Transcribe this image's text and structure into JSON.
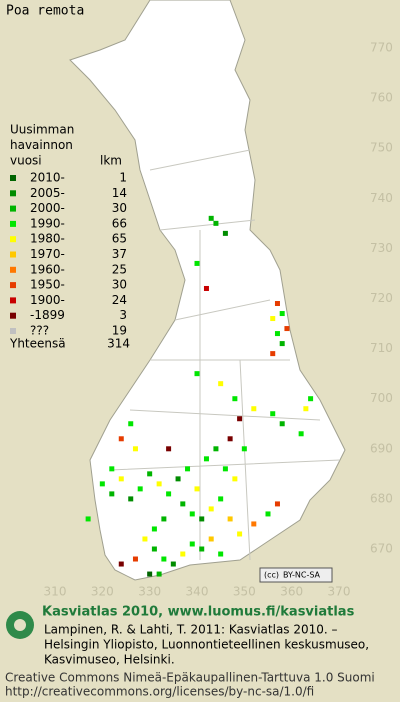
{
  "title": "Poa remota",
  "legend": {
    "heading": [
      "Uusimman",
      "havainnon",
      "vuosi"
    ],
    "count_heading": "lkm",
    "rows": [
      {
        "label": "2010-",
        "count": 1,
        "color": "#006400"
      },
      {
        "label": "2005-",
        "count": 14,
        "color": "#008c00"
      },
      {
        "label": "2000-",
        "count": 30,
        "color": "#00b400"
      },
      {
        "label": "1990-",
        "count": 66,
        "color": "#00e600"
      },
      {
        "label": "1980-",
        "count": 65,
        "color": "#ffff00"
      },
      {
        "label": "1970-",
        "count": 37,
        "color": "#ffc800"
      },
      {
        "label": "1960-",
        "count": 25,
        "color": "#ff7800"
      },
      {
        "label": "1950-",
        "count": 30,
        "color": "#e63c00"
      },
      {
        "label": "1900-",
        "count": 24,
        "color": "#c80000"
      },
      {
        "label": "-1899",
        "count": 3,
        "color": "#780000"
      },
      {
        "label": "???",
        "count": 19,
        "color": "#c0c0c0"
      }
    ],
    "total_label": "Yhteensä",
    "total": 314
  },
  "map": {
    "xlim": [
      310,
      370
    ],
    "ylim": [
      670,
      770
    ],
    "xticks": [
      310,
      320,
      330,
      340,
      350,
      360,
      370
    ],
    "yticks": [
      670,
      680,
      690,
      700,
      710,
      720,
      730,
      740,
      750,
      760,
      770
    ],
    "points": [
      [
        343,
        736,
        3
      ],
      [
        344,
        735,
        3
      ],
      [
        346,
        733,
        2
      ],
      [
        340,
        727,
        4
      ],
      [
        342,
        722,
        9
      ],
      [
        357,
        719,
        8
      ],
      [
        358,
        717,
        4
      ],
      [
        356,
        716,
        5
      ],
      [
        359,
        714,
        8
      ],
      [
        357,
        713,
        4
      ],
      [
        358,
        711,
        3
      ],
      [
        356,
        709,
        8
      ],
      [
        340,
        705,
        4
      ],
      [
        345,
        703,
        5
      ],
      [
        348,
        700,
        4
      ],
      [
        352,
        698,
        5
      ],
      [
        356,
        697,
        4
      ],
      [
        349,
        696,
        10
      ],
      [
        358,
        695,
        3
      ],
      [
        362,
        693,
        4
      ],
      [
        363,
        698,
        5
      ],
      [
        364,
        700,
        4
      ],
      [
        326,
        695,
        4
      ],
      [
        324,
        692,
        8
      ],
      [
        327,
        690,
        5
      ],
      [
        322,
        686,
        4
      ],
      [
        320,
        683,
        4
      ],
      [
        322,
        681,
        3
      ],
      [
        324,
        684,
        5
      ],
      [
        326,
        680,
        2
      ],
      [
        328,
        682,
        4
      ],
      [
        330,
        685,
        3
      ],
      [
        332,
        683,
        5
      ],
      [
        334,
        681,
        4
      ],
      [
        336,
        684,
        2
      ],
      [
        338,
        686,
        4
      ],
      [
        340,
        682,
        5
      ],
      [
        342,
        688,
        4
      ],
      [
        344,
        690,
        3
      ],
      [
        346,
        686,
        4
      ],
      [
        348,
        684,
        5
      ],
      [
        337,
        679,
        3
      ],
      [
        339,
        677,
        4
      ],
      [
        341,
        676,
        2
      ],
      [
        343,
        678,
        5
      ],
      [
        345,
        680,
        4
      ],
      [
        347,
        676,
        6
      ],
      [
        333,
        676,
        3
      ],
      [
        331,
        674,
        4
      ],
      [
        329,
        672,
        5
      ],
      [
        331,
        670,
        3
      ],
      [
        333,
        668,
        4
      ],
      [
        335,
        667,
        2
      ],
      [
        337,
        669,
        5
      ],
      [
        339,
        671,
        4
      ],
      [
        341,
        670,
        3
      ],
      [
        343,
        672,
        6
      ],
      [
        345,
        669,
        4
      ],
      [
        349,
        673,
        5
      ],
      [
        352,
        675,
        7
      ],
      [
        355,
        677,
        4
      ],
      [
        357,
        679,
        8
      ],
      [
        327,
        668,
        8
      ],
      [
        324,
        667,
        10
      ],
      [
        330,
        665,
        1
      ],
      [
        332,
        665,
        3
      ],
      [
        334,
        690,
        10
      ],
      [
        317,
        676,
        4
      ],
      [
        350,
        690,
        4
      ],
      [
        347,
        692,
        10
      ]
    ]
  },
  "badge": [
    "(cc)",
    "BY-NC-SA"
  ],
  "footer": {
    "heading": "Kasviatlas 2010, www.luomus.fi/kasviatlas",
    "citation": [
      "Lampinen, R. & Lahti, T. 2011: Kasviatlas 2010. –",
      "Helsingin Yliopisto, Luonnontieteellinen keskusmuseo,",
      "Kasvimuseo, Helsinki."
    ],
    "license": [
      "Creative Commons Nimeä-Epäkaupallinen-Tarttuva 1.0 Suomi",
      "http://creativecommons.org/licenses/by-nc-sa/1.0/fi"
    ]
  }
}
